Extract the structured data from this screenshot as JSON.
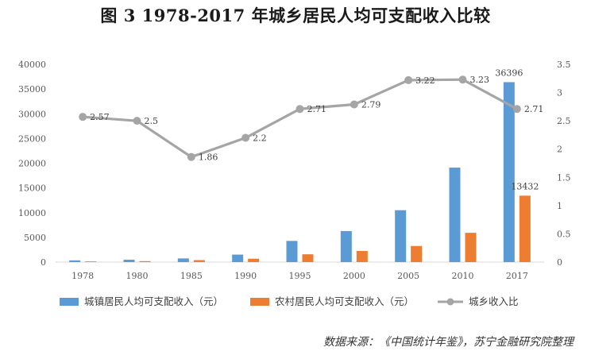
{
  "chart_data": {
    "type": "bar",
    "title": "图 3    1978-2017 年城乡居民人均可支配收入比较",
    "categories": [
      "1978",
      "1980",
      "1985",
      "1990",
      "1995",
      "2000",
      "2005",
      "2010",
      "2017"
    ],
    "series": [
      {
        "name": "城镇居民人均可支配收入（元）",
        "type": "bar",
        "axis": "left",
        "color": "#5B9BD5",
        "values": [
          343,
          478,
          739,
          1510,
          4283,
          6280,
          10493,
          19109,
          36396
        ]
      },
      {
        "name": "农村居民人均可支配收入（元）",
        "type": "bar",
        "axis": "left",
        "color": "#ED7D31",
        "values": [
          134,
          191,
          398,
          686,
          1578,
          2253,
          3255,
          5919,
          13432
        ]
      },
      {
        "name": "城乡收入比",
        "type": "line",
        "axis": "right",
        "color": "#A5A5A5",
        "values": [
          2.57,
          2.5,
          1.86,
          2.2,
          2.71,
          2.79,
          3.22,
          3.23,
          2.71
        ]
      }
    ],
    "bar_value_labels": [
      {
        "series": 0,
        "index": 8,
        "text": "36396"
      },
      {
        "series": 1,
        "index": 8,
        "text": "13432"
      }
    ],
    "line_value_labels": [
      "2.57",
      "2.5",
      "1.86",
      "2.2",
      "2.71",
      "2.79",
      "3.22",
      "3.23",
      "2.71"
    ],
    "left_axis": {
      "ylim": [
        0,
        40000
      ],
      "ticks": [
        "0",
        "5000",
        "10000",
        "15000",
        "20000",
        "25000",
        "30000",
        "35000",
        "40000"
      ]
    },
    "right_axis": {
      "ylim": [
        0,
        3.5
      ],
      "ticks": [
        "0",
        "0.5",
        "1",
        "1.5",
        "2",
        "2.5",
        "3",
        "3.5"
      ]
    },
    "grid": false,
    "legend": "bottom"
  },
  "source": "数据来源：《中国统计年鉴》，苏宁金融研究院整理"
}
